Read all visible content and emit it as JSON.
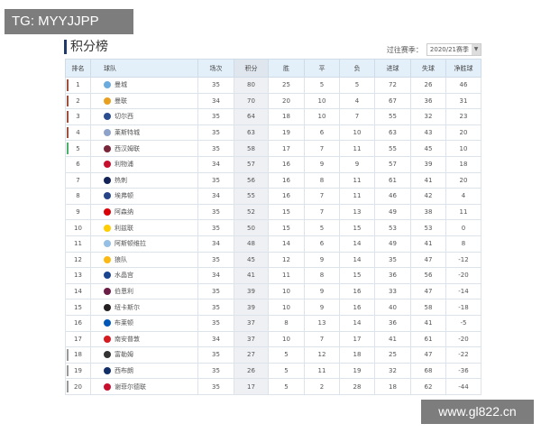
{
  "watermarks": {
    "top_left": "TG: MYYJJPP",
    "bottom_right": "www.gl822.cn"
  },
  "title": "积分榜",
  "season": {
    "label": "过往赛季：",
    "selected": "2020/21赛季"
  },
  "colors": {
    "header_bg": "#e3f0fa",
    "champions_league": "#a0503c",
    "europa": "#4caf6a",
    "relegation": "#999999"
  },
  "headers": [
    "排名",
    "球队",
    "场次",
    "积分",
    "胜",
    "平",
    "负",
    "进球",
    "失球",
    "净胜球"
  ],
  "rows": [
    {
      "rank": "1",
      "team": "曼城",
      "p": "35",
      "pts": "80",
      "w": "25",
      "d": "5",
      "l": "5",
      "gf": "72",
      "ga": "26",
      "gd": "46",
      "zone": "cl",
      "crest": "#6cabdd"
    },
    {
      "rank": "2",
      "team": "曼联",
      "p": "34",
      "pts": "70",
      "w": "20",
      "d": "10",
      "l": "4",
      "gf": "67",
      "ga": "36",
      "gd": "31",
      "zone": "cl",
      "crest": "#e8a020"
    },
    {
      "rank": "3",
      "team": "切尔西",
      "p": "35",
      "pts": "64",
      "w": "18",
      "d": "10",
      "l": "7",
      "gf": "55",
      "ga": "32",
      "gd": "23",
      "zone": "cl",
      "crest": "#2a4d8f"
    },
    {
      "rank": "4",
      "team": "莱斯特城",
      "p": "35",
      "pts": "63",
      "w": "19",
      "d": "6",
      "l": "10",
      "gf": "63",
      "ga": "43",
      "gd": "20",
      "zone": "cl",
      "crest": "#8da3c9"
    },
    {
      "rank": "5",
      "team": "西汉姆联",
      "p": "35",
      "pts": "58",
      "w": "17",
      "d": "7",
      "l": "11",
      "gf": "55",
      "ga": "45",
      "gd": "10",
      "zone": "el",
      "crest": "#7a263a"
    },
    {
      "rank": "6",
      "team": "利物浦",
      "p": "34",
      "pts": "57",
      "w": "16",
      "d": "9",
      "l": "9",
      "gf": "57",
      "ga": "39",
      "gd": "18",
      "zone": "",
      "crest": "#c8102e"
    },
    {
      "rank": "7",
      "team": "热刺",
      "p": "35",
      "pts": "56",
      "w": "16",
      "d": "8",
      "l": "11",
      "gf": "61",
      "ga": "41",
      "gd": "20",
      "zone": "",
      "crest": "#132257"
    },
    {
      "rank": "8",
      "team": "埃弗顿",
      "p": "34",
      "pts": "55",
      "w": "16",
      "d": "7",
      "l": "11",
      "gf": "46",
      "ga": "42",
      "gd": "4",
      "zone": "",
      "crest": "#274488"
    },
    {
      "rank": "9",
      "team": "阿森纳",
      "p": "35",
      "pts": "52",
      "w": "15",
      "d": "7",
      "l": "13",
      "gf": "49",
      "ga": "38",
      "gd": "11",
      "zone": "",
      "crest": "#db0007"
    },
    {
      "rank": "10",
      "team": "利兹联",
      "p": "35",
      "pts": "50",
      "w": "15",
      "d": "5",
      "l": "15",
      "gf": "53",
      "ga": "53",
      "gd": "0",
      "zone": "",
      "crest": "#ffcd00"
    },
    {
      "rank": "11",
      "team": "阿斯顿维拉",
      "p": "34",
      "pts": "48",
      "w": "14",
      "d": "6",
      "l": "14",
      "gf": "49",
      "ga": "41",
      "gd": "8",
      "zone": "",
      "crest": "#95bfe5"
    },
    {
      "rank": "12",
      "team": "狼队",
      "p": "35",
      "pts": "45",
      "w": "12",
      "d": "9",
      "l": "14",
      "gf": "35",
      "ga": "47",
      "gd": "-12",
      "zone": "",
      "crest": "#fdb913"
    },
    {
      "rank": "13",
      "team": "水晶宫",
      "p": "34",
      "pts": "41",
      "w": "11",
      "d": "8",
      "l": "15",
      "gf": "36",
      "ga": "56",
      "gd": "-20",
      "zone": "",
      "crest": "#1b458f"
    },
    {
      "rank": "14",
      "team": "伯恩利",
      "p": "35",
      "pts": "39",
      "w": "10",
      "d": "9",
      "l": "16",
      "gf": "33",
      "ga": "47",
      "gd": "-14",
      "zone": "",
      "crest": "#6c1d45"
    },
    {
      "rank": "15",
      "team": "纽卡斯尔",
      "p": "35",
      "pts": "39",
      "w": "10",
      "d": "9",
      "l": "16",
      "gf": "40",
      "ga": "58",
      "gd": "-18",
      "zone": "",
      "crest": "#241f20"
    },
    {
      "rank": "16",
      "team": "布莱顿",
      "p": "35",
      "pts": "37",
      "w": "8",
      "d": "13",
      "l": "14",
      "gf": "36",
      "ga": "41",
      "gd": "-5",
      "zone": "",
      "crest": "#0057b8"
    },
    {
      "rank": "17",
      "team": "南安普敦",
      "p": "34",
      "pts": "37",
      "w": "10",
      "d": "7",
      "l": "17",
      "gf": "41",
      "ga": "61",
      "gd": "-20",
      "zone": "",
      "crest": "#d71920"
    },
    {
      "rank": "18",
      "team": "富勒姆",
      "p": "35",
      "pts": "27",
      "w": "5",
      "d": "12",
      "l": "18",
      "gf": "25",
      "ga": "47",
      "gd": "-22",
      "zone": "rel",
      "crest": "#333333"
    },
    {
      "rank": "19",
      "team": "西布朗",
      "p": "35",
      "pts": "26",
      "w": "5",
      "d": "11",
      "l": "19",
      "gf": "32",
      "ga": "68",
      "gd": "-36",
      "zone": "rel",
      "crest": "#122f67"
    },
    {
      "rank": "20",
      "team": "谢菲尔德联",
      "p": "35",
      "pts": "17",
      "w": "5",
      "d": "2",
      "l": "28",
      "gf": "18",
      "ga": "62",
      "gd": "-44",
      "zone": "rel",
      "crest": "#c8102e"
    }
  ]
}
